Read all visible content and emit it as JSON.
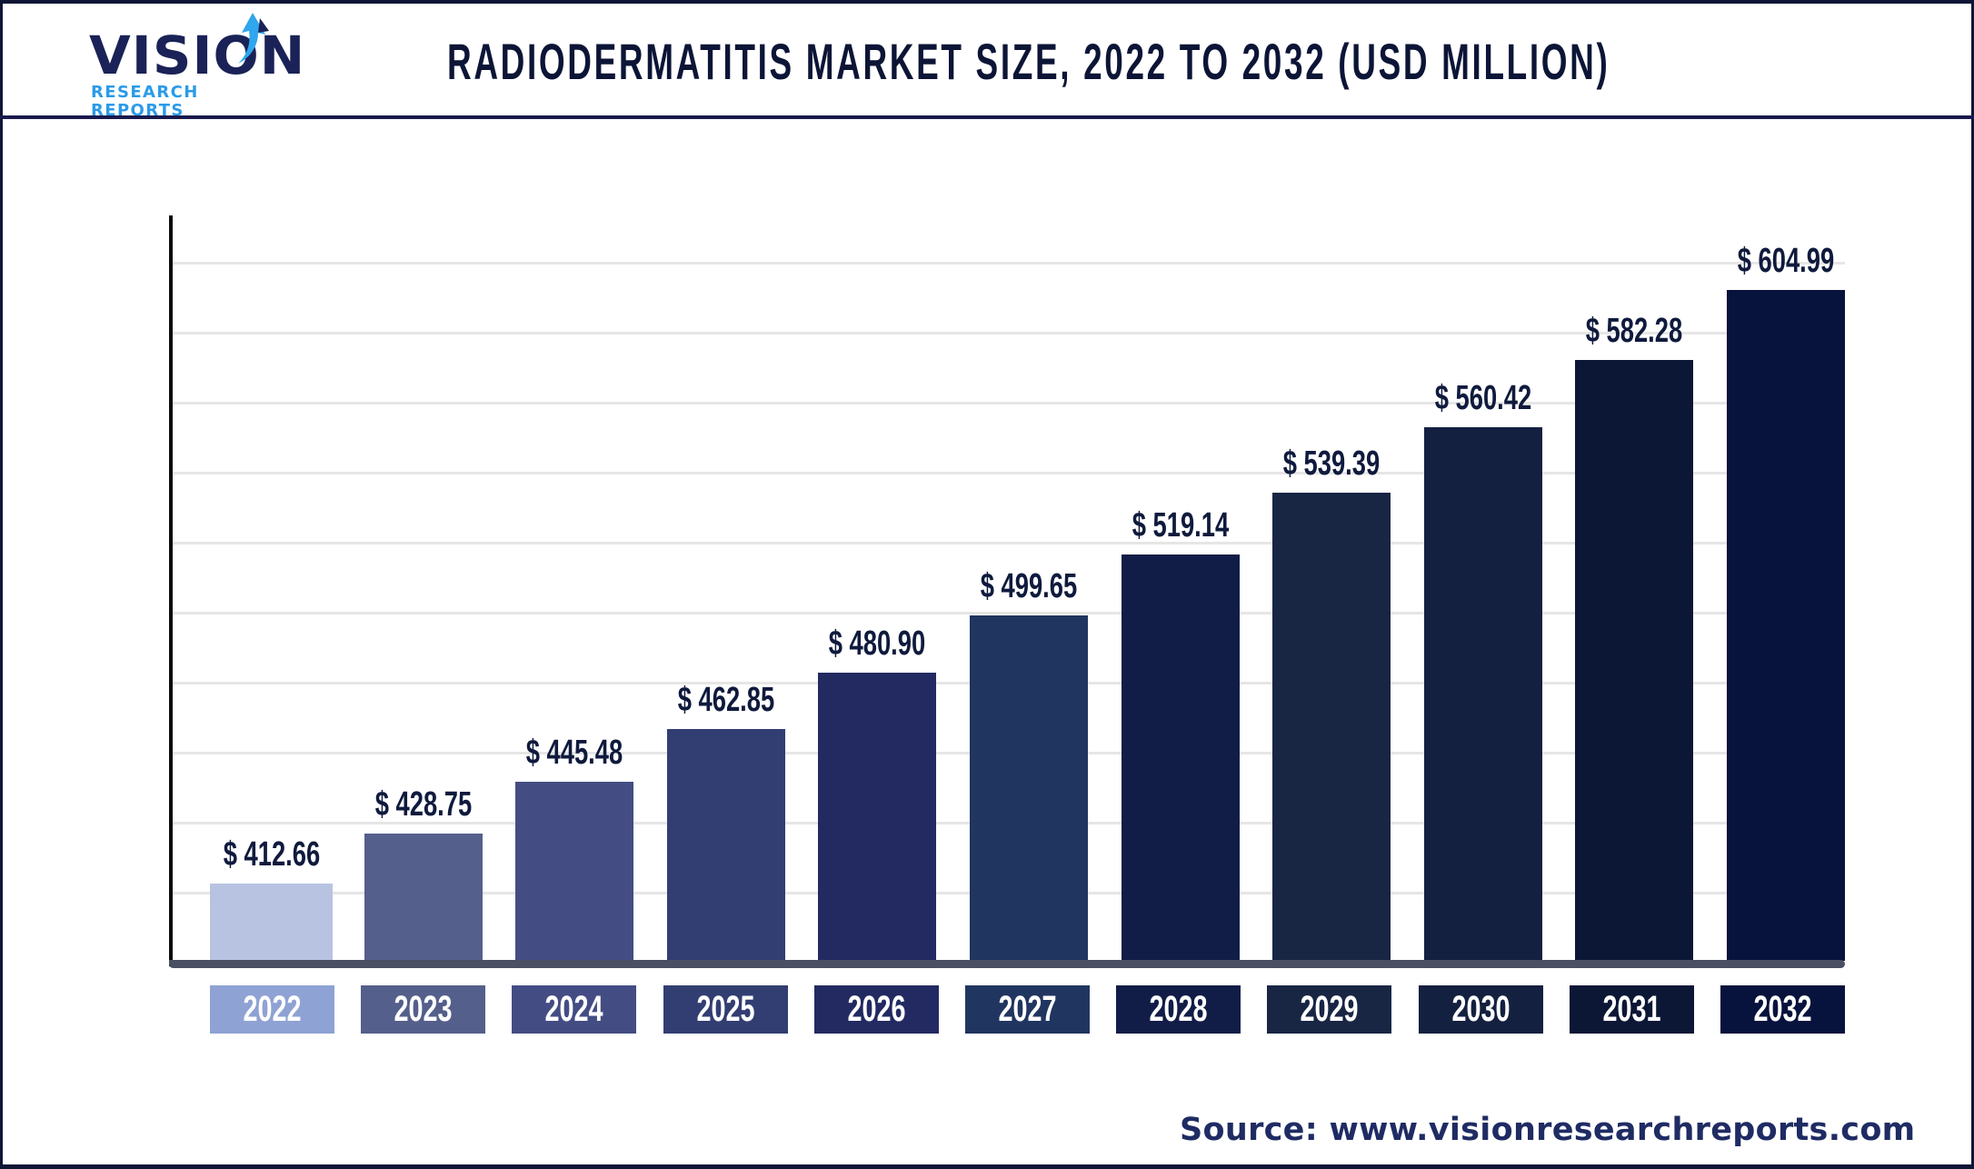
{
  "header": {
    "logo": {
      "word": "VISION",
      "subtitle": "RESEARCH REPORTS",
      "icon": "arrow-drop-icon"
    },
    "title": "RADIODERMATITIS MARKET SIZE, 2022 TO 2032 (USD MILLION)"
  },
  "footer": {
    "source": "Source: www.visionresearchreports.com"
  },
  "colors": {
    "bars": [
      "#b8c3e2",
      "#545f8b",
      "#434d84",
      "#323e72",
      "#222a61",
      "#203560",
      "#111d47",
      "#182644",
      "#14203f",
      "#0c1736",
      "#07133d"
    ],
    "year_boxes": [
      "#8fa2d4",
      "#545f8b",
      "#434d84",
      "#323e72",
      "#222a61",
      "#203560",
      "#111d47",
      "#182644",
      "#14203f",
      "#0c1736",
      "#07133d"
    ],
    "label_text": "#0f1a3d",
    "gridline": "#e6e6e6",
    "axis": "#4a4f63"
  },
  "chart_data": {
    "type": "bar",
    "title": "RADIODERMATITIS MARKET SIZE, 2022 TO 2032 (USD MILLION)",
    "xlabel": "",
    "ylabel": "USD Million",
    "categories": [
      "2022",
      "2023",
      "2024",
      "2025",
      "2026",
      "2027",
      "2028",
      "2029",
      "2030",
      "2031",
      "2032"
    ],
    "values": [
      412.66,
      428.75,
      445.48,
      462.85,
      480.9,
      499.65,
      519.14,
      539.39,
      560.42,
      582.28,
      604.99
    ],
    "labels": [
      "$ 412.66",
      "$ 428.75",
      "$ 445.48",
      "$ 462.85",
      "$ 480.90",
      "$ 499.65",
      "$ 519.14",
      "$ 539.39",
      "$ 560.42",
      "$ 582.28",
      "$ 604.99"
    ],
    "grid": true,
    "legend": null,
    "source": "www.visionresearchreports.com"
  }
}
